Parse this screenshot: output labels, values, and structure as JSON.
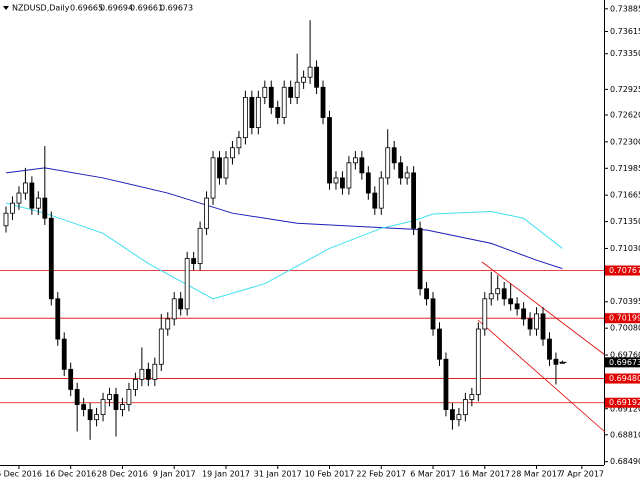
{
  "chart_data": {
    "type": "candlestick",
    "symbol": "NZDUSD,Daily",
    "ylim": [
      0.6845,
      0.7399
    ],
    "yticks": [
      0.73885,
      0.73615,
      {
        "value": 0.7335,
        "label": "0.73350"
      },
      0.72925,
      {
        "value": 0.7262,
        "label": "0.72620"
      },
      {
        "value": 0.723,
        "label": "0.72300"
      },
      0.71985,
      0.71665,
      {
        "value": 0.7135,
        "label": "0.71350"
      },
      {
        "value": 0.7103,
        "label": "0.71030"
      },
      0.70395,
      {
        "value": 0.7008,
        "label": "0.70080"
      },
      {
        "value": 0.6976,
        "label": "0.69760"
      },
      {
        "value": 0.6912,
        "label": "0.69120"
      },
      {
        "value": 0.6881,
        "label": "0.68810"
      },
      {
        "value": 0.6849,
        "label": "0.68490"
      }
    ],
    "levels": [
      0.70767,
      0.70199,
      {
        "value": 0.6948,
        "label": "0.69480"
      },
      0.69192
    ],
    "level_color": "#e00000",
    "categories": [
      null,
      null,
      "6 Dec 2016",
      null,
      null,
      null,
      null,
      null,
      null,
      null,
      "16 Dec 2016",
      null,
      null,
      null,
      null,
      null,
      null,
      null,
      "28 Dec 2016",
      null,
      null,
      null,
      null,
      null,
      null,
      null,
      "9 Jan 2017",
      null,
      null,
      null,
      null,
      null,
      null,
      null,
      "19 Jan 2017",
      null,
      null,
      null,
      null,
      null,
      null,
      null,
      "31 Jan 2017",
      null,
      null,
      null,
      null,
      null,
      null,
      null,
      "10 Feb 2017",
      null,
      null,
      null,
      null,
      null,
      null,
      null,
      "22 Feb 2017",
      null,
      null,
      null,
      null,
      null,
      null,
      null,
      "6 Mar 2017",
      null,
      null,
      null,
      null,
      null,
      null,
      null,
      "16 Mar 2017",
      null,
      null,
      null,
      null,
      null,
      null,
      null,
      "28 Mar 2017",
      null,
      null,
      null,
      null,
      null,
      null,
      "7 Apr 2017"
    ],
    "ohlc": [
      [
        0.713,
        0.7153,
        0.7122,
        0.7145
      ],
      [
        0.7145,
        0.7165,
        0.7137,
        0.7157
      ],
      [
        0.7157,
        0.7177,
        0.7149,
        0.7169
      ],
      [
        0.7169,
        0.7199,
        0.7161,
        0.7181
      ],
      [
        0.7181,
        0.7189,
        0.7143,
        0.7151
      ],
      [
        0.7151,
        0.7171,
        0.7143,
        0.7163
      ],
      [
        0.7163,
        0.7225,
        0.7131,
        0.7139
      ],
      [
        0.7139,
        0.7147,
        0.7035,
        0.7043
      ],
      [
        0.7043,
        0.7051,
        0.6987,
        0.6995
      ],
      [
        0.6995,
        0.7003,
        0.6951,
        0.6959
      ],
      [
        0.6959,
        0.6967,
        0.6927,
        0.6935
      ],
      [
        0.6935,
        0.6943,
        0.6885,
        0.6917
      ],
      [
        0.6917,
        0.6925,
        0.6903,
        0.6911
      ],
      [
        0.6911,
        0.6919,
        0.6875,
        0.6899
      ],
      [
        0.6899,
        0.6913,
        0.6891,
        0.6905
      ],
      [
        0.6905,
        0.6931,
        0.6897,
        0.6923
      ],
      [
        0.6923,
        0.6937,
        0.6915,
        0.6929
      ],
      [
        0.6929,
        0.6937,
        0.6879,
        0.6911
      ],
      [
        0.6911,
        0.6925,
        0.6903,
        0.6917
      ],
      [
        0.6917,
        0.6943,
        0.6909,
        0.6935
      ],
      [
        0.6935,
        0.6955,
        0.6927,
        0.6947
      ],
      [
        0.6947,
        0.6985,
        0.6939,
        0.6959
      ],
      [
        0.6959,
        0.6967,
        0.6939,
        0.6947
      ],
      [
        0.6947,
        0.6973,
        0.6939,
        0.6965
      ],
      [
        0.6965,
        0.7025,
        0.6957,
        0.7007
      ],
      [
        0.7007,
        0.7027,
        0.6999,
        0.7019
      ],
      [
        0.7019,
        0.7051,
        0.7011,
        0.7043
      ],
      [
        0.7043,
        0.7051,
        0.7023,
        0.7031
      ],
      [
        0.7031,
        0.7099,
        0.7023,
        0.7091
      ],
      [
        0.7091,
        0.7099,
        0.7077,
        0.7085
      ],
      [
        0.7085,
        0.7135,
        0.7077,
        0.7127
      ],
      [
        0.7127,
        0.7171,
        0.7119,
        0.7163
      ],
      [
        0.7163,
        0.7219,
        0.7155,
        0.7211
      ],
      [
        0.7211,
        0.7219,
        0.7179,
        0.7187
      ],
      [
        0.7187,
        0.7219,
        0.7179,
        0.7211
      ],
      [
        0.7211,
        0.7231,
        0.7203,
        0.7223
      ],
      [
        0.7223,
        0.7243,
        0.7215,
        0.7235
      ],
      [
        0.7235,
        0.7291,
        0.7227,
        0.7283
      ],
      [
        0.7283,
        0.7291,
        0.7239,
        0.7247
      ],
      [
        0.7247,
        0.7291,
        0.7239,
        0.7283
      ],
      [
        0.7283,
        0.7303,
        0.7275,
        0.7295
      ],
      [
        0.7295,
        0.7303,
        0.7263,
        0.7271
      ],
      [
        0.7271,
        0.7279,
        0.7251,
        0.7259
      ],
      [
        0.7259,
        0.7303,
        0.7251,
        0.7295
      ],
      [
        0.7295,
        0.7303,
        0.7275,
        0.7283
      ],
      [
        0.7283,
        0.7335,
        0.7275,
        0.7301
      ],
      [
        0.7301,
        0.7315,
        0.7293,
        0.7307
      ],
      [
        0.7307,
        0.7375,
        0.7299,
        0.7319
      ],
      [
        0.7319,
        0.7327,
        0.7287,
        0.7295
      ],
      [
        0.7295,
        0.7303,
        0.7251,
        0.7259
      ],
      [
        0.7259,
        0.7267,
        0.7173,
        0.7181
      ],
      [
        0.7181,
        0.7195,
        0.7173,
        0.7187
      ],
      [
        0.7187,
        0.7195,
        0.7167,
        0.7175
      ],
      [
        0.7175,
        0.7213,
        0.7167,
        0.7205
      ],
      [
        0.7205,
        0.7219,
        0.7197,
        0.7211
      ],
      [
        0.7211,
        0.7219,
        0.7185,
        0.7193
      ],
      [
        0.7193,
        0.7201,
        0.7161,
        0.7169
      ],
      [
        0.7169,
        0.7177,
        0.7143,
        0.7151
      ],
      [
        0.7151,
        0.7195,
        0.7143,
        0.7187
      ],
      [
        0.7187,
        0.7245,
        0.7179,
        0.7223
      ],
      [
        0.7223,
        0.7231,
        0.7197,
        0.7205
      ],
      [
        0.7205,
        0.7213,
        0.7179,
        0.7187
      ],
      [
        0.7187,
        0.7201,
        0.7179,
        0.7193
      ],
      [
        0.7193,
        0.7201,
        0.7119,
        0.7127
      ],
      [
        0.7127,
        0.7135,
        0.7047,
        0.7055
      ],
      [
        0.7055,
        0.7063,
        0.7035,
        0.7043
      ],
      [
        0.7043,
        0.7051,
        0.6999,
        0.7007
      ],
      [
        0.7007,
        0.7015,
        0.6963,
        0.6971
      ],
      [
        0.6971,
        0.6979,
        0.6903,
        0.6911
      ],
      [
        0.6911,
        0.6919,
        0.6887,
        0.6899
      ],
      [
        0.6899,
        0.6913,
        0.6891,
        0.6905
      ],
      [
        0.6905,
        0.6931,
        0.6897,
        0.6923
      ],
      [
        0.6923,
        0.6937,
        0.6915,
        0.6929
      ],
      [
        0.6929,
        0.7015,
        0.6921,
        0.7007
      ],
      [
        0.7007,
        0.7051,
        0.6999,
        0.7043
      ],
      [
        0.7043,
        0.7075,
        0.7035,
        0.7049
      ],
      [
        0.7049,
        0.7071,
        0.7041,
        0.7055
      ],
      [
        0.7055,
        0.7063,
        0.7035,
        0.7043
      ],
      [
        0.7043,
        0.7061,
        0.7029,
        0.7037
      ],
      [
        0.7037,
        0.7045,
        0.7023,
        0.7031
      ],
      [
        0.7031,
        0.7039,
        0.7011,
        0.7019
      ],
      [
        0.7019,
        0.7027,
        0.6999,
        0.7007
      ],
      [
        0.7007,
        0.7033,
        0.6999,
        0.7025
      ],
      [
        0.7025,
        0.7033,
        0.6987,
        0.6995
      ],
      [
        0.6995,
        0.7003,
        0.6963,
        0.6971
      ],
      [
        0.6971,
        0.6979,
        0.6941,
        0.6965
      ],
      [
        0.69665,
        0.69694,
        0.69661,
        0.69673
      ]
    ],
    "lines": [
      {
        "color": "#1c1cb8",
        "index": [
          0,
          6,
          15,
          25,
          35,
          45,
          55,
          65,
          75,
          82,
          86
        ],
        "values": [
          0.7193,
          0.7199,
          0.7187,
          0.7169,
          0.7145,
          0.7133,
          0.7129,
          0.7125,
          0.7109,
          0.7089,
          0.7079
        ]
      },
      {
        "color": "#40e0f0",
        "index": [
          0,
          6,
          15,
          22,
          32,
          40,
          50,
          58,
          63,
          66,
          75,
          80,
          86
        ],
        "values": [
          0.7157,
          0.7145,
          0.7121,
          0.7085,
          0.7043,
          0.7061,
          0.7103,
          0.7127,
          0.7136,
          0.7144,
          0.7147,
          0.7139,
          0.7103
        ]
      }
    ]
  }
}
